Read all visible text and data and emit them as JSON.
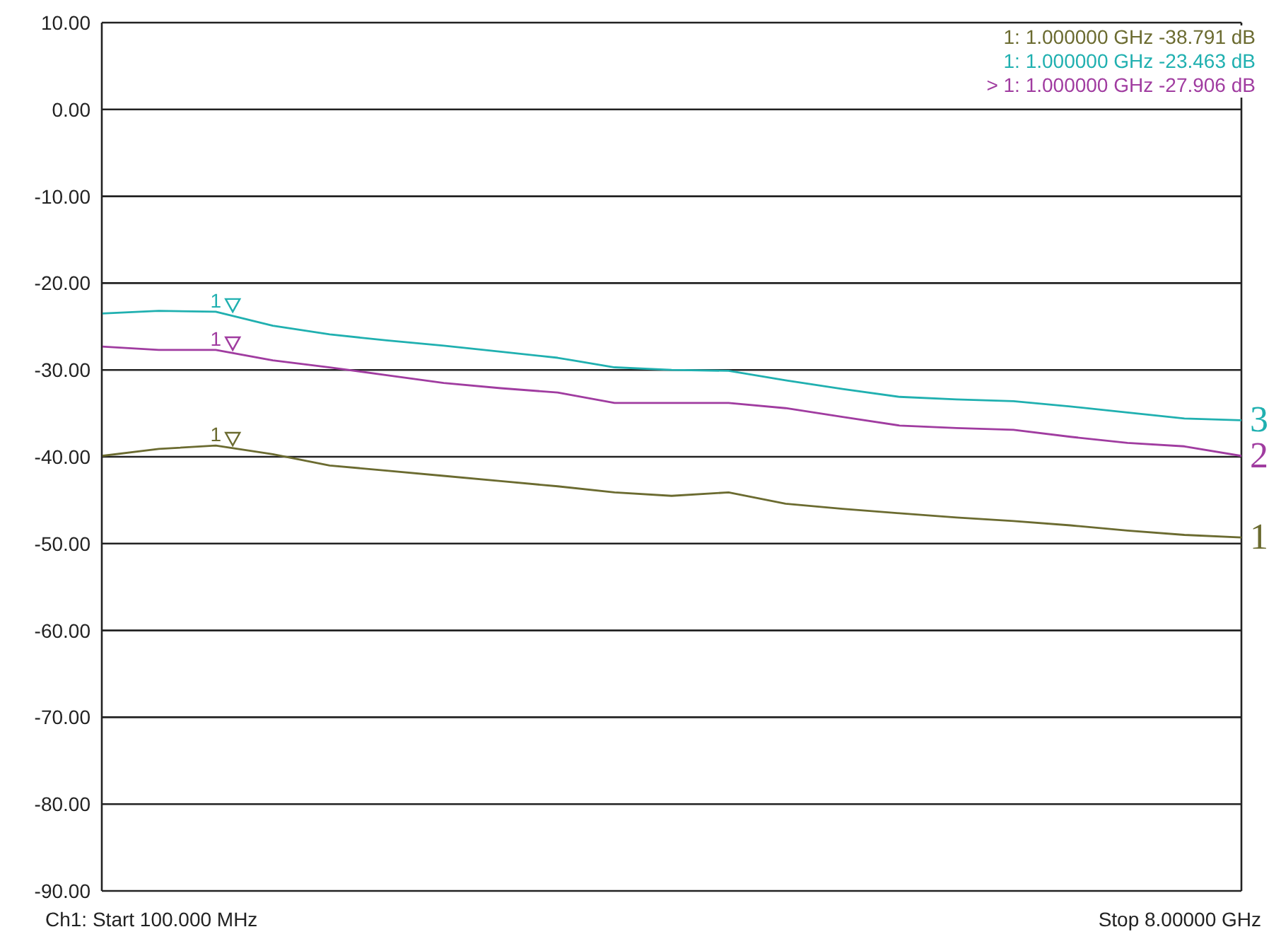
{
  "chart_data": {
    "type": "line",
    "categories": [
      null,
      null,
      null,
      null,
      null,
      null,
      null,
      null,
      null,
      null,
      null,
      null,
      null,
      null,
      null,
      null,
      null,
      null,
      null,
      null,
      null
    ],
    "ylim": [
      -90,
      10
    ],
    "yticks": [
      {
        "value": 10,
        "label": "10.00"
      },
      {
        "value": 0,
        "label": "0.00"
      },
      {
        "value": -10,
        "label": "-10.00"
      },
      {
        "value": -20,
        "label": "-20.00"
      },
      {
        "value": -30,
        "label": "-30.00"
      },
      {
        "value": -40,
        "label": "-40.00"
      },
      {
        "value": -50,
        "label": "-50.00"
      },
      {
        "value": -60,
        "label": "-60.00"
      },
      {
        "value": -70,
        "label": "-70.00"
      },
      {
        "value": -80,
        "label": "-80.00"
      },
      {
        "value": -90,
        "label": "-90.00"
      }
    ],
    "tick_labels": "y",
    "grid": true,
    "marker": "none",
    "line_style": "solid",
    "series": [
      {
        "name": "1",
        "color": "#6b6b30",
        "values": [
          -39.9,
          -39.1,
          -38.7,
          -39.7,
          -41,
          -41.6,
          -42.2,
          -42.8,
          -43.4,
          -44.1,
          -44.5,
          -44.1,
          -45.4,
          -46,
          -46.5,
          -47,
          -47.4,
          -47.9,
          -48.5,
          -49,
          -49.3
        ]
      },
      {
        "name": "3",
        "color": "#20b0b0",
        "values": [
          -23.5,
          -23.2,
          -23.3,
          -24.9,
          -25.9,
          -26.6,
          -27.2,
          -27.9,
          -28.6,
          -29.7,
          -30,
          -30.1,
          -31.2,
          -32.2,
          -33.1,
          -33.4,
          -33.6,
          -34.2,
          -34.9,
          -35.6,
          -35.8
        ]
      },
      {
        "name": "2",
        "color": "#a03ca0",
        "values": [
          -27.3,
          -27.7,
          -27.7,
          -28.9,
          -29.7,
          -30.6,
          -31.5,
          -32.1,
          -32.6,
          -33.8,
          -33.8,
          -33.8,
          -34.4,
          -35.4,
          -36.4,
          -36.7,
          -36.9,
          -37.7,
          -38.4,
          -38.8,
          -39.9
        ]
      }
    ],
    "annotations": [
      "1: 1.000000 GHz -38.791 dB",
      "1: 1.000000 GHz -23.463 dB",
      "> 1: 1.000000 GHz -27.906 dB",
      "1",
      "1",
      "1",
      "Ch1: Start 100.000 MHz",
      "Stop 8.00000 GHz"
    ]
  }
}
